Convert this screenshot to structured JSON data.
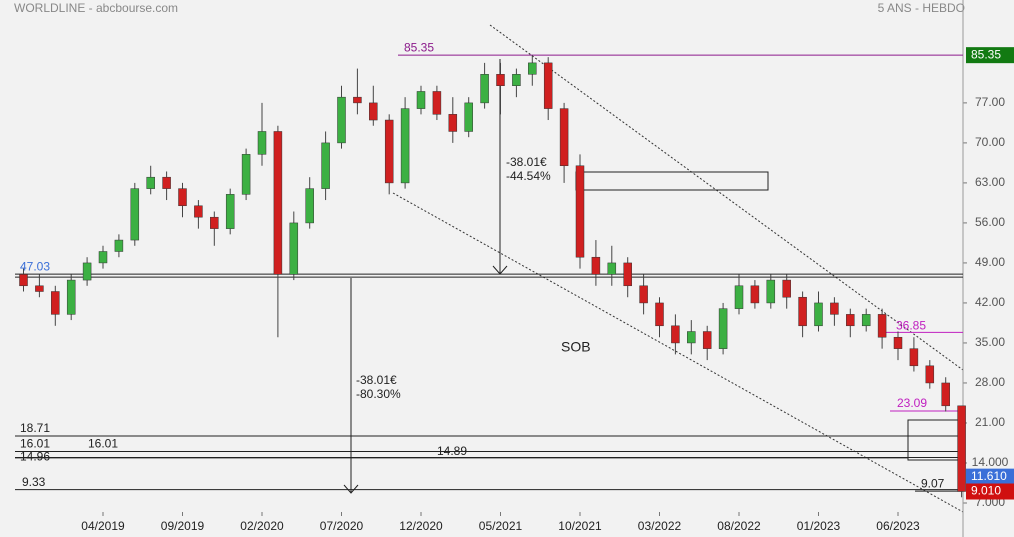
{
  "header": {
    "title": "WORLDLINE - abcbourse.com",
    "period": "5 ANS - HEBDO"
  },
  "chart_data": {
    "type": "candlestick",
    "x": [
      "11/2018",
      "12/2018",
      "01/2019",
      "02/2019",
      "03/2019",
      "04/2019",
      "05/2019",
      "06/2019",
      "07/2019",
      "08/2019",
      "09/2019",
      "10/2019",
      "11/2019",
      "12/2019",
      "01/2020",
      "02/2020",
      "03/2020",
      "04/2020",
      "05/2020",
      "06/2020",
      "07/2020",
      "08/2020",
      "09/2020",
      "10/2020",
      "11/2020",
      "12/2020",
      "01/2021",
      "02/2021",
      "03/2021",
      "04/2021",
      "05/2021",
      "06/2021",
      "07/2021",
      "08/2021",
      "09/2021",
      "10/2021",
      "11/2021",
      "12/2021",
      "01/2022",
      "02/2022",
      "03/2022",
      "04/2022",
      "05/2022",
      "06/2022",
      "07/2022",
      "08/2022",
      "09/2022",
      "10/2022",
      "11/2022",
      "12/2022",
      "01/2023",
      "02/2023",
      "03/2023",
      "04/2023",
      "05/2023",
      "06/2023",
      "07/2023",
      "08/2023",
      "09/2023",
      "10/2023"
    ],
    "open": [
      47,
      45,
      44,
      40,
      46,
      49,
      51,
      53,
      62,
      64,
      62,
      59,
      57,
      55,
      61,
      68,
      72,
      47,
      56,
      62,
      70,
      78,
      77,
      74,
      63,
      76,
      79,
      75,
      72,
      77,
      82,
      80,
      82,
      84,
      76,
      66,
      50,
      47,
      49,
      45,
      42,
      38,
      35,
      37,
      34,
      41,
      45,
      42,
      46,
      43,
      38,
      42,
      40,
      38,
      40,
      36,
      34,
      31,
      28,
      24
    ],
    "high": [
      48,
      47,
      45,
      47,
      50,
      52,
      54,
      63,
      66,
      65,
      63,
      60,
      58,
      62,
      69,
      77,
      73,
      58,
      64,
      72,
      80,
      83,
      80,
      75,
      78,
      80,
      80,
      78,
      78,
      84,
      84,
      83,
      85.35,
      85,
      77,
      68,
      53,
      52,
      50,
      47,
      43,
      40,
      39,
      38,
      42,
      47,
      46,
      47,
      47,
      44,
      44,
      43,
      41,
      41,
      41,
      37,
      36,
      32,
      29,
      24
    ],
    "low": [
      44,
      43,
      38,
      39,
      45,
      48,
      50,
      52,
      61,
      60,
      57,
      55,
      52,
      54,
      60,
      66,
      36,
      46,
      55,
      60,
      69,
      75,
      73,
      61,
      62,
      75,
      74,
      70,
      71,
      76,
      75,
      78,
      80,
      74,
      63,
      48,
      45,
      45,
      43,
      40,
      36,
      33,
      33,
      32,
      33,
      40,
      41,
      41,
      41,
      36,
      37,
      38,
      36,
      37,
      34,
      32,
      30,
      27,
      23,
      8
    ],
    "close": [
      45,
      44,
      40,
      46,
      49,
      51,
      53,
      62,
      64,
      62,
      59,
      57,
      55,
      61,
      68,
      72,
      47,
      56,
      62,
      70,
      78,
      77,
      74,
      63,
      76,
      79,
      75,
      72,
      77,
      82,
      80,
      82,
      84,
      76,
      66,
      50,
      47,
      49,
      45,
      42,
      38,
      35,
      37,
      34,
      41,
      45,
      42,
      46,
      43,
      38,
      42,
      40,
      38,
      40,
      36,
      34,
      31,
      28,
      24,
      9.01
    ],
    "up_color": "#3cb043",
    "down_color": "#d02020",
    "ylim": [
      1.05,
      95
    ],
    "yticks": [
      {
        "value": 77,
        "label": "77.00"
      },
      {
        "value": 70,
        "label": "70.00"
      },
      {
        "value": 63,
        "label": "63.00"
      },
      {
        "value": 56,
        "label": "56.00"
      },
      {
        "value": 49,
        "label": "49.00"
      },
      {
        "value": 42,
        "label": "42.00"
      },
      {
        "value": 35,
        "label": "35.00"
      },
      {
        "value": 28,
        "label": "28.00"
      },
      {
        "value": 21,
        "label": "21.00"
      },
      {
        "value": 14,
        "label": "14.000"
      },
      {
        "value": 7,
        "label": "7.000"
      }
    ],
    "xticks": [
      "04/2019",
      "09/2019",
      "02/2020",
      "07/2020",
      "12/2020",
      "05/2021",
      "10/2021",
      "03/2022",
      "08/2022",
      "01/2023",
      "06/2023"
    ],
    "levels": [
      85.35,
      47.03,
      36.85,
      23.09,
      18.71,
      16.01,
      14.96,
      14.89,
      9.33,
      9.07
    ],
    "price_tags": [
      {
        "value": 85.35,
        "color": "#127a12"
      },
      {
        "value": 11.61,
        "label": "11.610",
        "color": "#3a6fd8"
      },
      {
        "value": 9.01,
        "label": "9.010",
        "color": "#d01010"
      }
    ],
    "annotations": {
      "drop1": [
        "-38.01€",
        "-44.54%"
      ],
      "drop2": [
        "-38.01€",
        "-80.30%"
      ],
      "pattern": "SOB"
    }
  }
}
